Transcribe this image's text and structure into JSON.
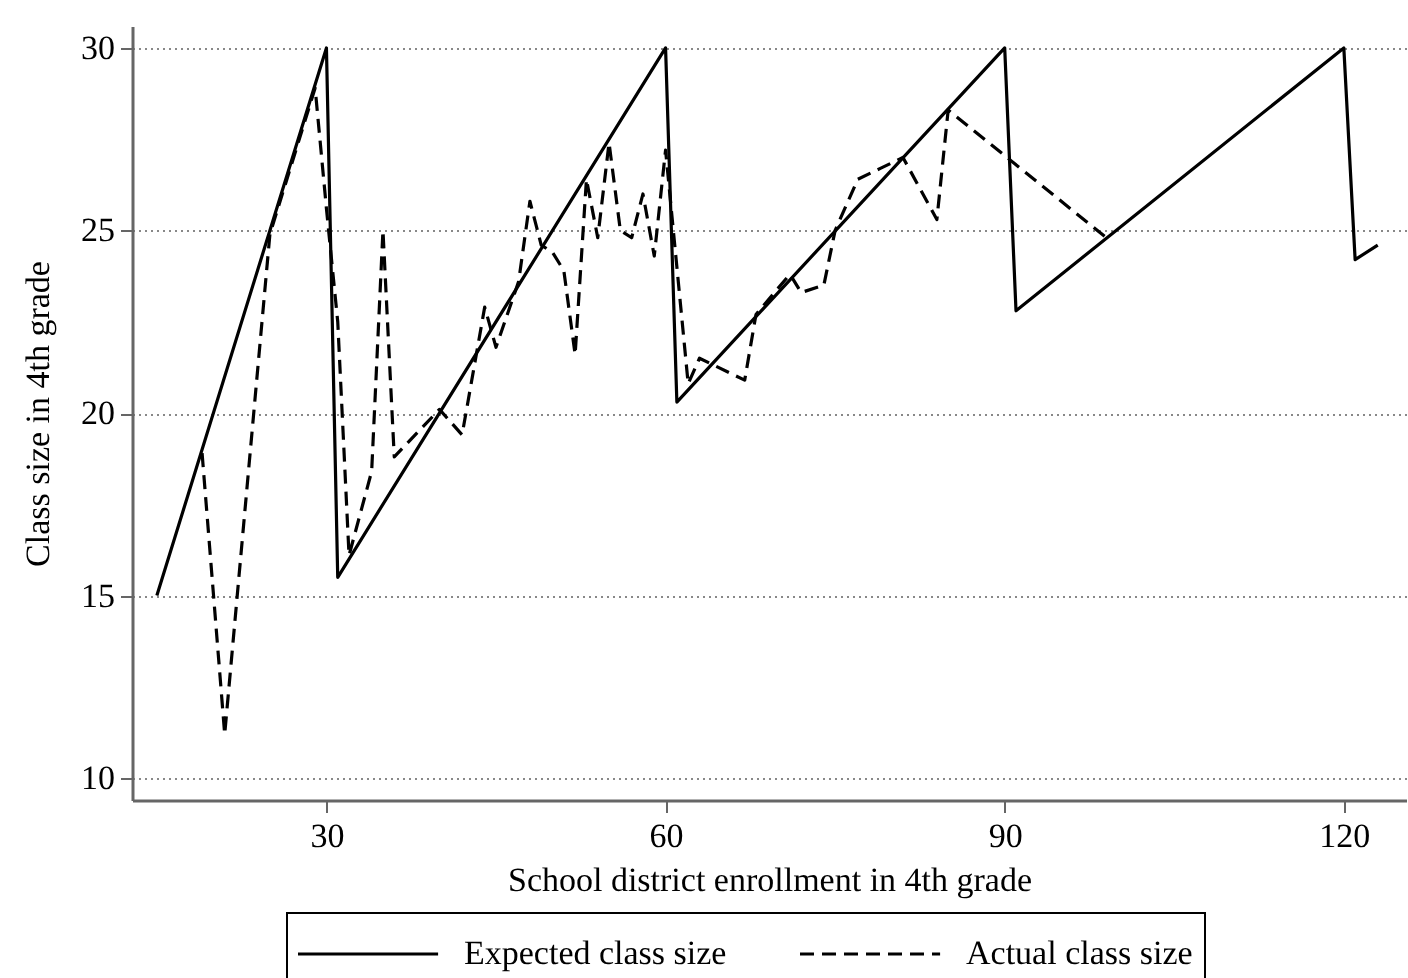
{
  "chart_data": {
    "type": "line",
    "xlabel": "School district enrollment in 4th grade",
    "ylabel": "Class size in 4th grade",
    "xlim": [
      12.8,
      125.5
    ],
    "xticks": [
      30,
      60,
      90,
      120
    ],
    "ylim": [
      9.4,
      30.6
    ],
    "yticks": [
      10,
      15,
      20,
      25,
      30
    ],
    "grid": "y",
    "legend": "bottom",
    "series": [
      {
        "name": "Expected class size",
        "color": "#000000",
        "line_style": "solid",
        "x": [
          15,
          30,
          31,
          60,
          61,
          90,
          91,
          120,
          121,
          123
        ],
        "values": [
          15,
          30,
          15.5,
          30,
          20.3,
          30,
          22.8,
          30,
          24.2,
          24.6
        ]
      },
      {
        "name": "Actual class size",
        "color": "#000000",
        "line_style": "dashed",
        "x": [
          19,
          21,
          25,
          29,
          30,
          31,
          32,
          34,
          35,
          36,
          40,
          42,
          44,
          45,
          46,
          47,
          48,
          49,
          50,
          51,
          52,
          53,
          54,
          55,
          56,
          57,
          58,
          59,
          60,
          62,
          63,
          67,
          68,
          71,
          72,
          74,
          75,
          77,
          79,
          81,
          84,
          85,
          99
        ],
        "values": [
          18.9,
          11.2,
          24.9,
          28.9,
          25.6,
          22.5,
          16.1,
          18.4,
          25.0,
          18.8,
          20.1,
          19.4,
          22.9,
          21.8,
          22.7,
          23.6,
          25.8,
          24.6,
          24.4,
          23.9,
          21.6,
          26.4,
          24.8,
          27.4,
          25.0,
          24.8,
          26.0,
          24.3,
          27.2,
          20.8,
          21.5,
          20.9,
          22.7,
          23.8,
          23.3,
          23.5,
          25.0,
          26.4,
          26.7,
          27.0,
          25.3,
          28.3,
          24.8
        ]
      }
    ]
  }
}
